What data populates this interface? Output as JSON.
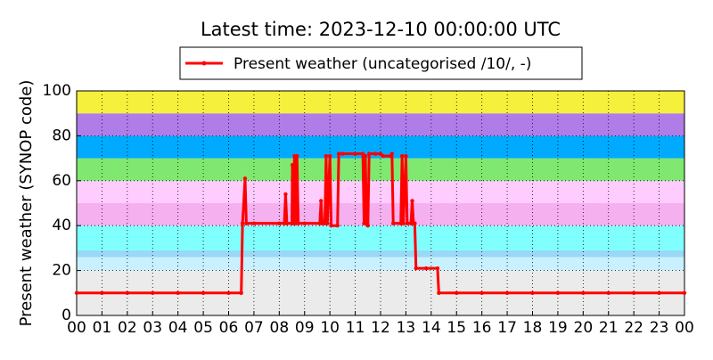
{
  "chart_data": {
    "type": "line",
    "title": "Latest time: 2023-12-10 00:00:00 UTC",
    "y_label": "Present weather (SYNOP code)",
    "legend": "upper center",
    "grid": true,
    "xlim": [
      0,
      24
    ],
    "ylim": [
      0,
      100
    ],
    "yticks": [
      0,
      20,
      40,
      60,
      80,
      100
    ],
    "xticks": [
      {
        "value": 0,
        "label": "00"
      },
      {
        "value": 1,
        "label": "01"
      },
      {
        "value": 2,
        "label": "02"
      },
      {
        "value": 3,
        "label": "03"
      },
      {
        "value": 4,
        "label": "04"
      },
      {
        "value": 5,
        "label": "05"
      },
      {
        "value": 6,
        "label": "06"
      },
      {
        "value": 7,
        "label": "07"
      },
      {
        "value": 8,
        "label": "08"
      },
      {
        "value": 9,
        "label": "09"
      },
      {
        "value": 10,
        "label": "10"
      },
      {
        "value": 11,
        "label": "11"
      },
      {
        "value": 12,
        "label": "12"
      },
      {
        "value": 13,
        "label": "13"
      },
      {
        "value": 14,
        "label": "14"
      },
      {
        "value": 15,
        "label": "15"
      },
      {
        "value": 16,
        "label": "16"
      },
      {
        "value": 17,
        "label": "17"
      },
      {
        "value": 18,
        "label": "18"
      },
      {
        "value": 19,
        "label": "19"
      },
      {
        "value": 20,
        "label": "20"
      },
      {
        "value": 21,
        "label": "21"
      },
      {
        "value": 22,
        "label": "22"
      },
      {
        "value": 23,
        "label": "23"
      },
      {
        "value": 24,
        "label": "00"
      }
    ],
    "bands": [
      {
        "from": 0,
        "to": 20,
        "color": "#ebebeb"
      },
      {
        "from": 20,
        "to": 26,
        "color": "#c8f0ff"
      },
      {
        "from": 26,
        "to": 29,
        "color": "#99d9f5"
      },
      {
        "from": 29,
        "to": 40,
        "color": "#80ffff"
      },
      {
        "from": 40,
        "to": 50,
        "color": "#f5b0f0"
      },
      {
        "from": 50,
        "to": 60,
        "color": "#ffccff"
      },
      {
        "from": 60,
        "to": 70,
        "color": "#80e870"
      },
      {
        "from": 70,
        "to": 80,
        "color": "#00aaff"
      },
      {
        "from": 80,
        "to": 90,
        "color": "#b07ce8"
      },
      {
        "from": 90,
        "to": 100,
        "color": "#f5f03c"
      }
    ],
    "x": [
      0,
      1,
      2,
      3,
      4,
      5,
      6,
      6.5,
      6.55,
      6.65,
      6.7,
      7,
      8,
      8.2,
      8.25,
      8.3,
      8.5,
      8.52,
      8.55,
      8.6,
      8.65,
      8.7,
      8.75,
      9,
      9.6,
      9.65,
      9.7,
      9.8,
      9.85,
      9.9,
      10,
      10.05,
      10.3,
      10.35,
      10.5,
      11,
      11.3,
      11.35,
      11.4,
      11.45,
      11.5,
      11.55,
      11.8,
      12,
      12.1,
      12.4,
      12.45,
      12.5,
      12.8,
      12.85,
      12.9,
      13,
      13.05,
      13.2,
      13.25,
      13.3,
      13.35,
      13.4,
      13.8,
      14.25,
      14.3,
      15,
      16,
      17,
      18,
      19,
      20,
      21,
      22,
      23,
      24
    ],
    "series": [
      {
        "name": "Present weather (uncategorised /10/, -)",
        "color": "#ff0000",
        "values": [
          10,
          10,
          10,
          10,
          10,
          10,
          10,
          10,
          41,
          61,
          41,
          41,
          41,
          41,
          54,
          41,
          41,
          67,
          41,
          71,
          41,
          71,
          41,
          41,
          41,
          51,
          41,
          41,
          71,
          41,
          71,
          40,
          40,
          72,
          72,
          72,
          72,
          41,
          71,
          41,
          40,
          72,
          72,
          72,
          71,
          71,
          72,
          41,
          41,
          71,
          41,
          71,
          41,
          41,
          51,
          41,
          41,
          21,
          21,
          21,
          10,
          10,
          10,
          10,
          10,
          10,
          10,
          10,
          10,
          10,
          10
        ]
      }
    ]
  }
}
